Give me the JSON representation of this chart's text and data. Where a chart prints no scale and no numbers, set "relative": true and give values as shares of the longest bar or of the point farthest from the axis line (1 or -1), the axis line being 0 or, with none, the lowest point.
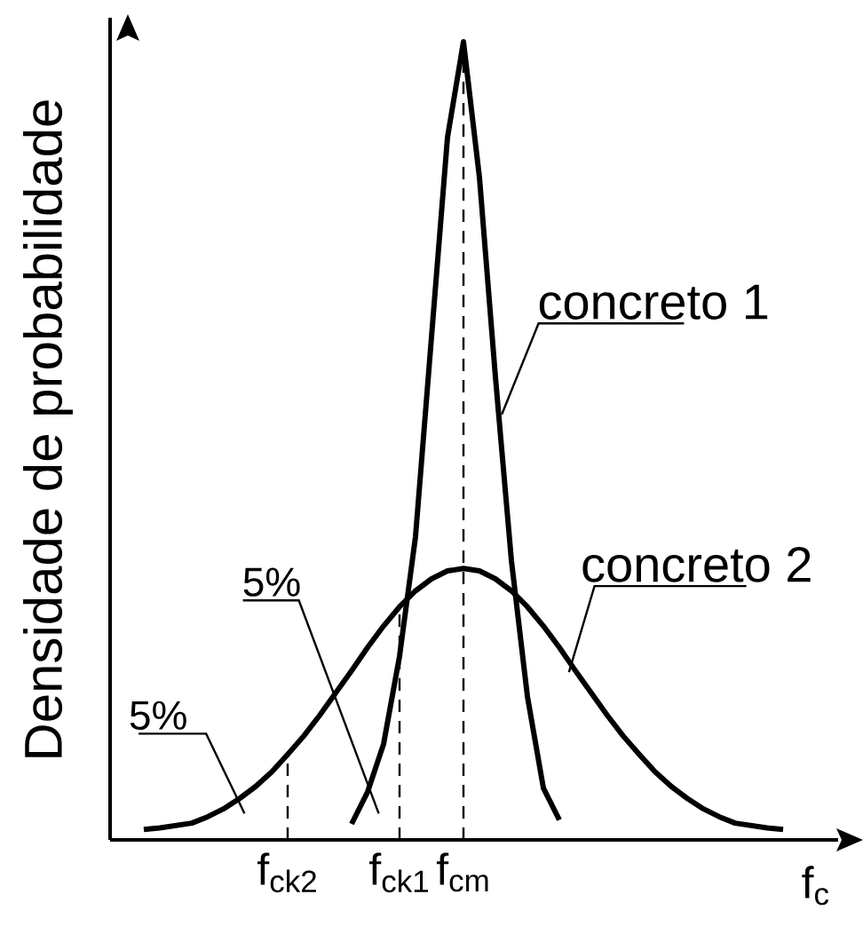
{
  "chart_data": {
    "type": "line",
    "relative": true,
    "ylabel": "Densidade de probabilidade",
    "xlabel": "f$_{c}$",
    "marker": "none",
    "line_style": "solid",
    "tick_labels": "x",
    "categories": [
      null,
      null,
      null,
      null,
      null,
      null,
      null,
      null,
      null,
      null,
      "f$_{ck2}$",
      null,
      null,
      null,
      null,
      null,
      null,
      "f$_{ck1}$",
      null,
      null,
      null,
      "f$_{cm}$",
      null,
      null,
      null,
      null,
      null,
      null,
      null,
      null,
      null,
      null,
      null,
      null,
      null,
      null,
      null,
      null,
      null,
      null,
      null,
      null,
      null,
      null,
      null
    ],
    "series": [
      {
        "name": "concreto 1",
        "color": "#000000",
        "values": [
          null,
          null,
          null,
          null,
          null,
          null,
          null,
          null,
          null,
          null,
          null,
          null,
          null,
          null,
          0.02,
          0.06,
          0.12,
          0.23,
          0.38,
          0.63,
          0.88,
          1,
          0.83,
          0.58,
          0.35,
          0.18,
          0.065,
          0.025,
          null,
          null,
          null,
          null,
          null,
          null,
          null,
          null,
          null,
          null,
          null,
          null,
          null,
          null,
          null,
          null,
          null
        ]
      },
      {
        "name": "concreto 2",
        "color": "#000000",
        "values": [
          null,
          0.013,
          0.015,
          0.018,
          0.021,
          0.029,
          0.039,
          0.052,
          0.067,
          0.085,
          0.107,
          0.13,
          0.156,
          0.184,
          0.212,
          0.241,
          0.268,
          0.292,
          0.312,
          0.327,
          0.337,
          0.34,
          0.337,
          0.327,
          0.312,
          0.292,
          0.268,
          0.241,
          0.212,
          0.184,
          0.156,
          0.13,
          0.107,
          0.085,
          0.067,
          0.052,
          0.039,
          0.029,
          0.021,
          0.018,
          0.015,
          0.013,
          null,
          null,
          null
        ]
      }
    ],
    "ref_lines": [
      {
        "axis": "x",
        "value": "f$_{ck2}$",
        "line_style": "dashed"
      },
      {
        "axis": "x",
        "value": "f$_{ck1}$",
        "line_style": "dashed"
      },
      {
        "axis": "x",
        "value": "f$_{cm}$",
        "line_style": "dashed"
      }
    ],
    "annotations": [
      "5%",
      "5%"
    ]
  }
}
